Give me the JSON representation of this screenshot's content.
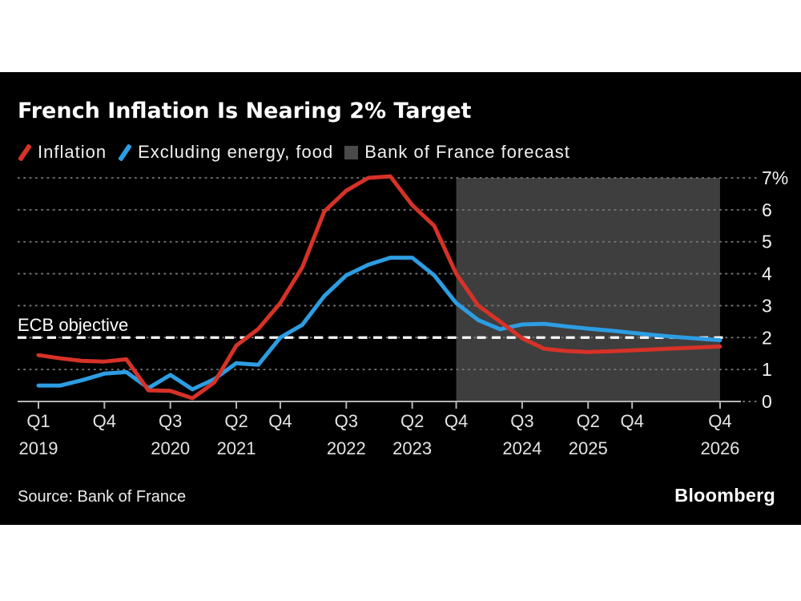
{
  "title": "French Inflation Is Nearing 2% Target",
  "legend": [
    {
      "label": "Inflation",
      "swatch": "slash",
      "color": "#d73227"
    },
    {
      "label": "Excluding energy, food",
      "swatch": "slash",
      "color": "#2d9de2"
    },
    {
      "label": "Bank of France forecast",
      "swatch": "square",
      "color": "#4a4a4a"
    }
  ],
  "annotation": {
    "ecb_label": "ECB objective",
    "ecb_value": 2
  },
  "source": {
    "prefix": "Source:",
    "name": "Bank of France"
  },
  "brand": "Bloomberg",
  "colors": {
    "background": "#000000",
    "page": "#ffffff",
    "grid": "#787878",
    "axis": "#b5b5b5",
    "tick_text": "#e4e4e4",
    "y_text": "#f3f3f3",
    "ecb_line": "#ffffff"
  },
  "chart_data": {
    "type": "line",
    "frequency": "quarterly",
    "start": "Q1 2019",
    "end": "Q4 2026",
    "ylim": [
      0,
      7
    ],
    "yticks": [
      {
        "v": 0,
        "label": "0"
      },
      {
        "v": 1,
        "label": "1"
      },
      {
        "v": 2,
        "label": "2"
      },
      {
        "v": 3,
        "label": "3"
      },
      {
        "v": 4,
        "label": "4"
      },
      {
        "v": 5,
        "label": "5"
      },
      {
        "v": 6,
        "label": "6"
      },
      {
        "v": 7,
        "label": "7%"
      }
    ],
    "xticks": [
      {
        "i": 0,
        "q": "Q1",
        "year": "2019"
      },
      {
        "i": 3,
        "q": "Q4"
      },
      {
        "i": 6,
        "q": "Q3",
        "year": "2020"
      },
      {
        "i": 9,
        "q": "Q2",
        "year": "2021"
      },
      {
        "i": 11,
        "q": "Q4"
      },
      {
        "i": 14,
        "q": "Q3",
        "year": "2022"
      },
      {
        "i": 17,
        "q": "Q2",
        "year": "2023"
      },
      {
        "i": 19,
        "q": "Q4"
      },
      {
        "i": 22,
        "q": "Q3",
        "year": "2024"
      },
      {
        "i": 25,
        "q": "Q2",
        "year": "2025"
      },
      {
        "i": 27,
        "q": "Q4"
      },
      {
        "i": 31,
        "q": "Q4",
        "year": "2026"
      }
    ],
    "ecb_objective": 2,
    "forecast": {
      "label": "Bank of France forecast",
      "start_index": 19,
      "end_index": 31,
      "fill": "#3e3e3e"
    },
    "series": [
      {
        "name": "Inflation",
        "color": "#d73227",
        "values": [
          1.45,
          1.35,
          1.27,
          1.25,
          1.32,
          0.35,
          0.33,
          0.1,
          0.6,
          1.75,
          2.27,
          3.08,
          4.2,
          5.95,
          6.6,
          7.0,
          7.05,
          6.15,
          5.5,
          4.0,
          3.0,
          2.5,
          1.98,
          1.65,
          1.58,
          1.55,
          1.57,
          1.6,
          1.63,
          1.66,
          1.69,
          1.72
        ]
      },
      {
        "name": "Excluding energy, food",
        "color": "#2d9de2",
        "values": [
          0.5,
          0.5,
          0.67,
          0.87,
          0.92,
          0.42,
          0.83,
          0.38,
          0.7,
          1.2,
          1.15,
          2.0,
          2.4,
          3.3,
          3.95,
          4.28,
          4.5,
          4.5,
          3.95,
          3.08,
          2.55,
          2.26,
          2.41,
          2.43,
          2.35,
          2.28,
          2.22,
          2.15,
          2.08,
          2.02,
          1.97,
          1.92
        ]
      }
    ],
    "grid": "dotted-horizontal",
    "legend_position": "top-left"
  }
}
